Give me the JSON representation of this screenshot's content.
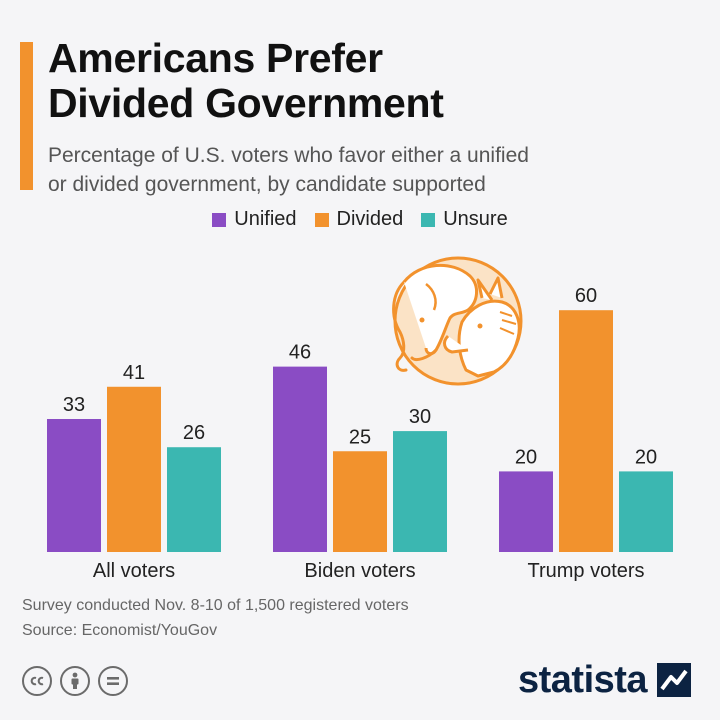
{
  "header": {
    "title_line1": "Americans Prefer",
    "title_line2": "Divided Government",
    "subtitle_line1": "Percentage of U.S. voters who favor either a unified",
    "subtitle_line2": "or divided government, by candidate supported"
  },
  "colors": {
    "accent": "#f2922d",
    "unified": "#8a4cc4",
    "divided": "#f2922d",
    "unsure": "#3bb7b1"
  },
  "legend": {
    "unified": "Unified",
    "divided": "Divided",
    "unsure": "Unsure"
  },
  "chart_data": {
    "type": "bar",
    "title": "Americans Prefer Divided Government",
    "categories": [
      "All voters",
      "Biden voters",
      "Trump voters"
    ],
    "series": [
      {
        "name": "Unified",
        "color": "#8a4cc4",
        "values": [
          33,
          46,
          20
        ]
      },
      {
        "name": "Divided",
        "color": "#f2922d",
        "values": [
          41,
          25,
          60
        ]
      },
      {
        "name": "Unsure",
        "color": "#3bb7b1",
        "values": [
          26,
          30,
          20
        ]
      }
    ],
    "xlabel": "",
    "ylabel": "",
    "ylim": [
      0,
      60
    ],
    "grid": false,
    "legend_position": "top-center"
  },
  "footer": {
    "note": "Survey conducted Nov. 8-10 of 1,500 registered voters",
    "source": "Source: Economist/YouGov"
  },
  "brand": {
    "name": "statista"
  },
  "icons": [
    "elephant-donkey-illustration",
    "cc-icon",
    "attribution-icon",
    "no-derivatives-icon",
    "statista-logo-icon"
  ]
}
